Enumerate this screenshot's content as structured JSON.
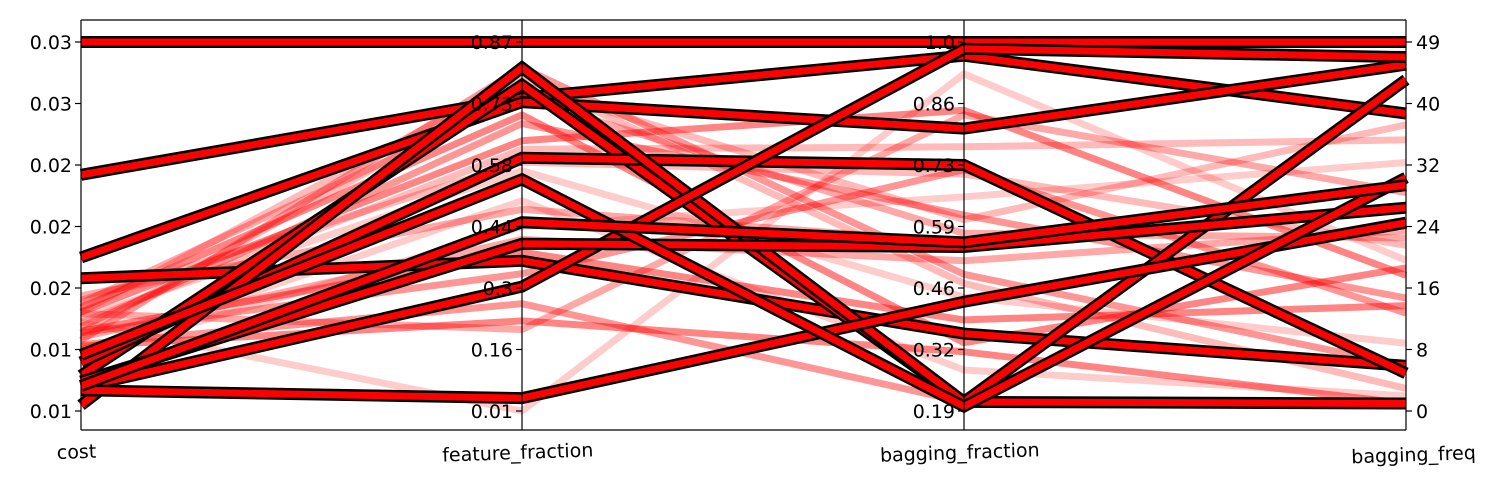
{
  "chart_data": {
    "type": "parallel-coordinates",
    "axes": [
      {
        "key": "cost",
        "label": "cost",
        "tick_labels": [
          "0.01",
          "0.01",
          "0.02",
          "0.02",
          "0.02",
          "0.03",
          "0.03"
        ],
        "range": [
          0.0061,
          0.0311
        ]
      },
      {
        "key": "feature_fraction",
        "label": "feature_fraction",
        "tick_labels": [
          "0.01",
          "0.16",
          "0.3",
          "0.44",
          "0.58",
          "0.73",
          "0.87"
        ],
        "range": [
          0.01,
          0.87
        ]
      },
      {
        "key": "bagging_fraction",
        "label": "bagging_fraction",
        "tick_labels": [
          "0.19",
          "0.32",
          "0.46",
          "0.59",
          "0.73",
          "0.86",
          "1.0"
        ],
        "range": [
          0.19,
          1.0
        ]
      },
      {
        "key": "bagging_freq",
        "label": "bagging_freq",
        "tick_labels": [
          "0",
          "8",
          "16",
          "24",
          "32",
          "40",
          "49"
        ],
        "range": [
          0,
          49
        ]
      }
    ],
    "colors": {
      "line": "#ff0000",
      "edge": "#000000"
    },
    "highlighted_lines": [
      [
        0.0311,
        0.87,
        1.0,
        49
      ],
      [
        0.0221,
        0.74,
        0.97,
        39.5
      ],
      [
        0.0165,
        0.73,
        0.81,
        46
      ],
      [
        0.0151,
        0.36,
        0.36,
        6
      ],
      [
        0.0085,
        0.77,
        0.21,
        1
      ],
      [
        0.0094,
        0.6,
        0.73,
        5
      ],
      [
        0.0065,
        0.81,
        0.21,
        44
      ],
      [
        0.0077,
        0.3,
        0.985,
        47
      ],
      [
        0.0081,
        0.4,
        0.55,
        27
      ],
      [
        0.0075,
        0.04,
        0.43,
        25
      ],
      [
        0.0099,
        0.55,
        0.2,
        31
      ],
      [
        0.0078,
        0.45,
        0.56,
        30
      ]
    ],
    "background_lines": [
      [
        0.0121,
        0.01,
        0.93,
        20
      ],
      [
        0.0128,
        0.79,
        0.47,
        3
      ],
      [
        0.0134,
        0.74,
        0.58,
        23
      ],
      [
        0.0118,
        0.68,
        0.62,
        15
      ],
      [
        0.0128,
        0.64,
        0.85,
        18
      ],
      [
        0.0124,
        0.57,
        0.44,
        9
      ],
      [
        0.0114,
        0.77,
        0.61,
        38
      ],
      [
        0.0139,
        0.48,
        0.56,
        27
      ],
      [
        0.0114,
        0.33,
        0.72,
        13
      ],
      [
        0.0105,
        0.22,
        0.32,
        1
      ],
      [
        0.0102,
        0.5,
        0.28,
        2
      ],
      [
        0.0121,
        0.62,
        0.77,
        36
      ],
      [
        0.0111,
        0.41,
        0.52,
        24
      ],
      [
        0.0106,
        0.26,
        0.21,
        1
      ],
      [
        0.0131,
        0.7,
        0.34,
        19
      ],
      [
        0.0098,
        0.44,
        0.66,
        33
      ],
      [
        0.0136,
        0.59,
        0.71,
        22
      ],
      [
        0.0127,
        0.2,
        0.84,
        29
      ],
      [
        0.0109,
        0.81,
        0.49,
        6
      ],
      [
        0.0115,
        0.38,
        0.39,
        14
      ]
    ]
  }
}
